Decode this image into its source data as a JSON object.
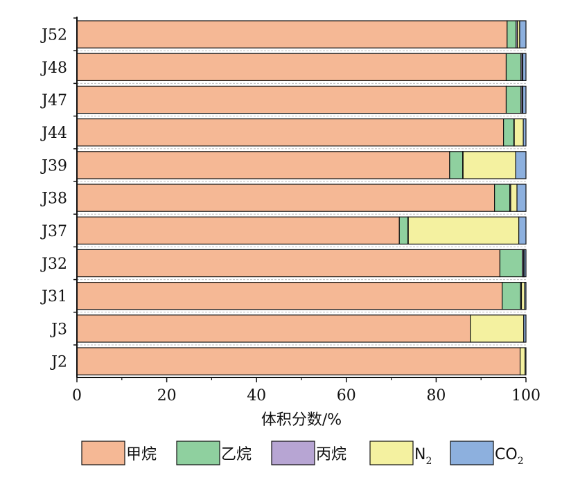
{
  "chart_data": {
    "type": "bar",
    "orientation": "horizontal",
    "stacked": true,
    "categories": [
      "J52",
      "J48",
      "J47",
      "J44",
      "J39",
      "J38",
      "J37",
      "J32",
      "J31",
      "J3",
      "J2"
    ],
    "series": [
      {
        "name": "甲烷",
        "color": "#F5B895",
        "values": [
          95.8,
          95.6,
          95.6,
          95.0,
          83.0,
          93.0,
          71.8,
          94.2,
          94.7,
          87.6,
          98.7
        ]
      },
      {
        "name": "乙烷",
        "color": "#8FD09F",
        "values": [
          2.0,
          3.3,
          3.3,
          2.3,
          2.9,
          3.4,
          1.9,
          5.0,
          4.1,
          0.0,
          0.0
        ]
      },
      {
        "name": "丙烷",
        "color": "#B7A5D3",
        "values": [
          0.3,
          0.3,
          0.3,
          0.1,
          0.1,
          0.2,
          0.1,
          0.3,
          0.2,
          0.0,
          0.0
        ]
      },
      {
        "name": "N",
        "name_subscript": "2",
        "color": "#F4F1A0",
        "values": [
          0.5,
          0.1,
          0.1,
          2.0,
          11.7,
          1.4,
          24.6,
          0.1,
          0.7,
          11.9,
          1.1
        ]
      },
      {
        "name": "CO",
        "name_subscript": "2",
        "color": "#8DB0DE",
        "values": [
          1.4,
          0.7,
          0.7,
          0.6,
          2.3,
          2.0,
          1.6,
          0.4,
          0.3,
          0.5,
          0.2
        ]
      }
    ],
    "xlabel": "体积分数/%",
    "xlim": [
      0,
      100
    ],
    "xticks": [
      0,
      20,
      40,
      60,
      80,
      100
    ],
    "legend_position": "bottom",
    "grid": false
  }
}
